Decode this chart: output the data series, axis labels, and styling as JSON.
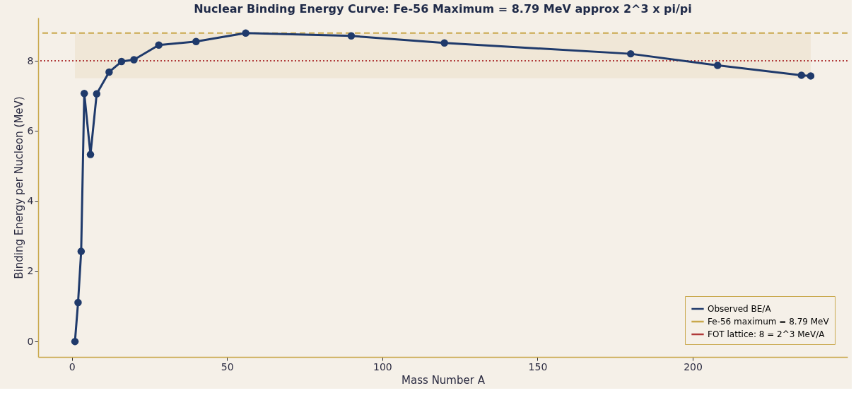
{
  "chart_data": {
    "type": "line",
    "title": "Nuclear Binding Energy Curve: Fe-56 Maximum = 8.79 MeV approx 2^3 x pi/pi",
    "xlabel": "Mass Number A",
    "ylabel": "Binding Energy per Nucleon (MeV)",
    "x": [
      1,
      2,
      3,
      4,
      6,
      8,
      12,
      16,
      20,
      28,
      40,
      56,
      90,
      120,
      180,
      208,
      235,
      238
    ],
    "series": [
      {
        "name": "Observed BE/A",
        "color": "#1f3a6b",
        "values": [
          0,
          1.11,
          2.57,
          7.07,
          5.33,
          7.06,
          7.68,
          7.98,
          8.03,
          8.45,
          8.55,
          8.79,
          8.71,
          8.51,
          8.2,
          7.87,
          7.59,
          7.57
        ]
      }
    ],
    "ref_lines": [
      {
        "axis": "y",
        "value": 8.79,
        "label": "Fe-56 maximum = 8.79 MeV",
        "color": "#c9a84c",
        "line_style": "dashed"
      },
      {
        "axis": "y",
        "value": 8,
        "label": "FOT lattice: 8 = 2^3 MeV/A",
        "color": "#b03a3a",
        "line_style": "dotted"
      }
    ],
    "bands": [
      {
        "axis": "y",
        "from": 7.5,
        "to": 8.79,
        "color": "#efe5d5"
      }
    ],
    "xlim": [
      -10.85,
      249.85
    ],
    "xticks": [
      0,
      50,
      100,
      150,
      200
    ],
    "ylim": [
      -0.44,
      9.23
    ],
    "yticks": [
      0,
      2,
      4,
      6,
      8
    ],
    "marker": "circle",
    "line_style": "solid",
    "grid": false,
    "legend": "bottom right"
  }
}
